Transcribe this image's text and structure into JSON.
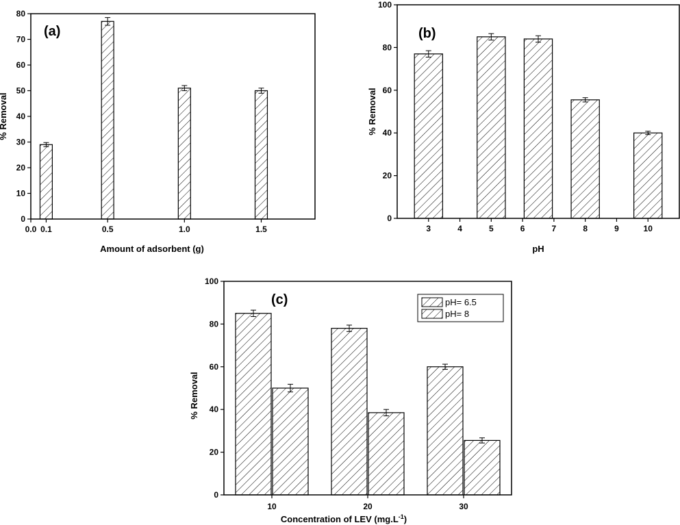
{
  "chart_data": [
    {
      "type": "bar",
      "panel_label": "(a)",
      "xlabel": "Amount of adsorbent (g)",
      "ylabel": "% Removal",
      "x_tick_labels": [
        "0.0",
        "0.1",
        "0.5",
        "1.0",
        "1.5"
      ],
      "x_ticks": [
        0.0,
        0.1,
        0.5,
        1.0,
        1.5
      ],
      "xlim": [
        0.0,
        1.85
      ],
      "ylim": [
        0,
        80
      ],
      "yticks": [
        0,
        10,
        20,
        30,
        40,
        50,
        60,
        70,
        80
      ],
      "x": [
        0.1,
        0.5,
        1.0,
        1.5
      ],
      "values": [
        29,
        77,
        51,
        50
      ],
      "errors": [
        0.8,
        1.5,
        1.0,
        1.0
      ],
      "bar_width": 0.08
    },
    {
      "type": "bar",
      "panel_label": "(b)",
      "xlabel": "pH",
      "ylabel": "% Removal",
      "x_tick_labels": [
        "3",
        "4",
        "5",
        "6",
        "7",
        "8",
        "9",
        "10"
      ],
      "x_ticks": [
        3,
        4,
        5,
        6,
        7,
        8,
        9,
        10
      ],
      "xlim": [
        2,
        11
      ],
      "ylim": [
        0,
        100
      ],
      "yticks": [
        0,
        20,
        40,
        60,
        80,
        100
      ],
      "x": [
        3,
        5,
        6.5,
        8,
        10
      ],
      "values": [
        77,
        85,
        84,
        55.5,
        40
      ],
      "errors": [
        1.5,
        1.5,
        1.5,
        1.0,
        0.8
      ],
      "bar_width": 0.9
    },
    {
      "type": "bar",
      "panel_label": "(c)",
      "xlabel": "Concentration of LEV (mg.L",
      "xlabel_sup": "-1",
      "xlabel_end": ")",
      "ylabel": "% Removal",
      "categories": [
        "10",
        "20",
        "30"
      ],
      "ylim": [
        0,
        100
      ],
      "yticks": [
        0,
        20,
        40,
        60,
        80,
        100
      ],
      "legend_position": "top-right",
      "series": [
        {
          "name": "pH= 6.5",
          "values": [
            85,
            78,
            60
          ],
          "errors": [
            1.5,
            1.5,
            1.2
          ]
        },
        {
          "name": "pH= 8",
          "values": [
            50,
            38.5,
            25.5
          ],
          "errors": [
            1.8,
            1.5,
            1.2
          ]
        }
      ]
    }
  ]
}
